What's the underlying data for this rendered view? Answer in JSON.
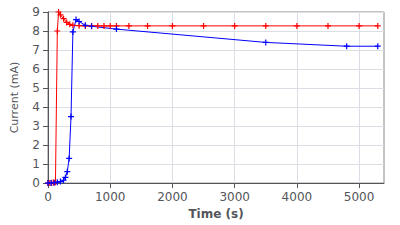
{
  "chart_data": {
    "type": "line",
    "xlabel": "Time (s)",
    "ylabel": "Current (mA)",
    "xlim": [
      0,
      5400
    ],
    "ylim": [
      0,
      9
    ],
    "xticks": [
      0,
      1000,
      2000,
      3000,
      4000,
      5000
    ],
    "yticks": [
      0,
      1,
      2,
      3,
      4,
      5,
      6,
      7,
      8,
      9
    ],
    "grid": true,
    "marker": "+",
    "series": [
      {
        "color": "#ff0000",
        "x": [
          0,
          30,
          60,
          90,
          120,
          150,
          170,
          200,
          250,
          300,
          350,
          400,
          500,
          600,
          700,
          800,
          900,
          1000,
          1100,
          1300,
          1600,
          2000,
          2500,
          3000,
          3500,
          4000,
          4500,
          5000,
          5300
        ],
        "values": [
          0.0,
          0.01,
          0.02,
          0.03,
          0.05,
          8.0,
          9.0,
          8.85,
          8.65,
          8.45,
          8.35,
          8.3,
          8.28,
          8.27,
          8.27,
          8.27,
          8.27,
          8.27,
          8.27,
          8.27,
          8.27,
          8.27,
          8.27,
          8.27,
          8.27,
          8.27,
          8.27,
          8.27,
          8.27
        ]
      },
      {
        "color": "#0000ff",
        "x": [
          0,
          50,
          100,
          150,
          200,
          250,
          280,
          310,
          340,
          370,
          400,
          450,
          500,
          600,
          700,
          1100,
          3500,
          4800,
          5300
        ],
        "values": [
          0.0,
          0.01,
          0.02,
          0.05,
          0.08,
          0.15,
          0.3,
          0.6,
          1.3,
          3.5,
          7.95,
          8.6,
          8.5,
          8.3,
          8.25,
          8.1,
          7.4,
          7.2,
          7.2
        ]
      }
    ]
  }
}
